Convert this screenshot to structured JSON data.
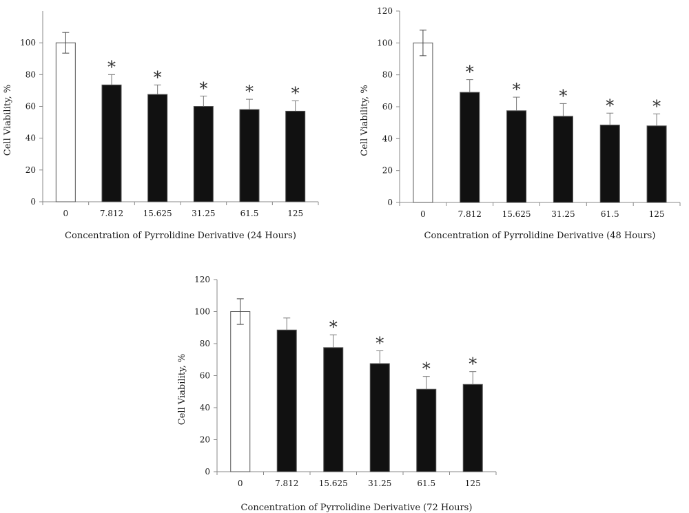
{
  "chart_data": [
    {
      "type": "bar",
      "categories": [
        "0",
        "7.812",
        "15.625",
        "31.25",
        "61.5",
        "125"
      ],
      "values": [
        100,
        73.5,
        67.5,
        60,
        58,
        57
      ],
      "errors": [
        6.5,
        6.5,
        6,
        6.5,
        6.5,
        6.5
      ],
      "significant": [
        false,
        true,
        true,
        true,
        true,
        true
      ],
      "significance_marker": "*",
      "bar_colors": [
        "#ffffff",
        "#111111",
        "#111111",
        "#111111",
        "#111111",
        "#111111"
      ],
      "xlabel": "Concentration of Pyrrolidine Derivative (24 Hours)",
      "ylabel": "Cell Viability, %",
      "ylim": [
        0,
        120
      ],
      "yticks": [
        0,
        20,
        40,
        60,
        80,
        100
      ],
      "grid": false
    },
    {
      "type": "bar",
      "categories": [
        "0",
        "7.812",
        "15.625",
        "31.25",
        "61.5",
        "125"
      ],
      "values": [
        100,
        69,
        57.5,
        54,
        48.5,
        48
      ],
      "errors": [
        8,
        8,
        8.5,
        8,
        7.5,
        7.5
      ],
      "significant": [
        false,
        true,
        true,
        true,
        true,
        true
      ],
      "significance_marker": "*",
      "bar_colors": [
        "#ffffff",
        "#111111",
        "#111111",
        "#111111",
        "#111111",
        "#111111"
      ],
      "xlabel": "Concentration of Pyrrolidine Derivative (48 Hours)",
      "ylabel": "Cell Viability, %",
      "ylim": [
        0,
        120
      ],
      "yticks": [
        0,
        20,
        40,
        60,
        80,
        100,
        120
      ],
      "grid": false
    },
    {
      "type": "bar",
      "categories": [
        "0",
        "7.812",
        "15.625",
        "31.25",
        "61.5",
        "125"
      ],
      "values": [
        100,
        88.5,
        77.5,
        67.5,
        51.5,
        54.5
      ],
      "errors": [
        8,
        7.5,
        8,
        8,
        8,
        8
      ],
      "significant": [
        false,
        false,
        true,
        true,
        true,
        true
      ],
      "significance_marker": "*",
      "bar_colors": [
        "#ffffff",
        "#111111",
        "#111111",
        "#111111",
        "#111111",
        "#111111"
      ],
      "xlabel": "Concentration of Pyrrolidine Derivative (72 Hours)",
      "ylabel": "Cell Viability, %",
      "ylim": [
        0,
        120
      ],
      "yticks": [
        0,
        20,
        40,
        60,
        80,
        100,
        120
      ],
      "grid": false
    }
  ]
}
